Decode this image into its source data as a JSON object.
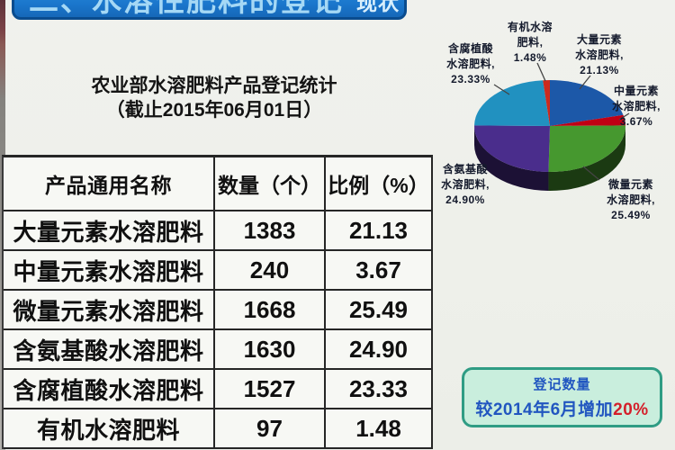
{
  "banner": {
    "title": "二、水溶性肥料的登记",
    "suffix": "现状"
  },
  "subtitle": {
    "line1": "农业部水溶肥料产品登记统计",
    "line2": "（截止2015年06月01日）"
  },
  "table": {
    "headers": [
      "产品通用名称",
      "数量（个）",
      "比例（%）"
    ],
    "rows": [
      {
        "name": "大量元素水溶肥料",
        "count": "1383",
        "pct": "21.13"
      },
      {
        "name": "中量元素水溶肥料",
        "count": "240",
        "pct": "3.67"
      },
      {
        "name": "微量元素水溶肥料",
        "count": "1668",
        "pct": "25.49"
      },
      {
        "name": "含氨基酸水溶肥料",
        "count": "1630",
        "pct": "24.90"
      },
      {
        "name": "含腐植酸水溶肥料",
        "count": "1527",
        "pct": "23.33"
      },
      {
        "name": "有机水溶肥料",
        "count": "97",
        "pct": "1.48"
      }
    ]
  },
  "pie_labels": {
    "macro": {
      "l1": "大量元素",
      "l2": "水溶肥料,",
      "l3": "21.13%"
    },
    "middle": {
      "l1": "中量元素",
      "l2": "水溶肥料,",
      "l3": "3.67%"
    },
    "micro": {
      "l1": "微量元素",
      "l2": "水溶肥料,",
      "l3": "25.49%"
    },
    "amino": {
      "l1": "含氨基酸",
      "l2": "水溶肥料,",
      "l3": "24.90%"
    },
    "humic": {
      "l1": "含腐植酸",
      "l2": "水溶肥料,",
      "l3": "23.33%"
    },
    "organic": {
      "l1": "有机水溶",
      "l2": "肥料,",
      "l3": "1.48%"
    }
  },
  "note": {
    "line1": "登记数量",
    "line2_prefix": "较2014年6月增加",
    "line2_highlight": "20%"
  },
  "chart_data": {
    "type": "pie",
    "title": "农业部水溶肥料产品登记统计（截止2015年06月01日）",
    "categories": [
      "大量元素水溶肥料",
      "中量元素水溶肥料",
      "微量元素水溶肥料",
      "含氨基酸水溶肥料",
      "含腐植酸水溶肥料",
      "有机水溶肥料"
    ],
    "values": [
      21.13,
      3.67,
      25.49,
      24.9,
      23.33,
      1.48
    ],
    "counts": [
      1383,
      240,
      1668,
      1630,
      1527,
      97
    ],
    "unit": "%",
    "colors": [
      "#1c58a8",
      "#c00014",
      "#46982f",
      "#4a2d8c",
      "#2191c0",
      "#cc2a1e"
    ],
    "start_angle_deg": 0,
    "direction": "clockwise",
    "style": "3d",
    "legend_position": "none",
    "annotation_note": "登记数量较2014年6月增加20%"
  }
}
